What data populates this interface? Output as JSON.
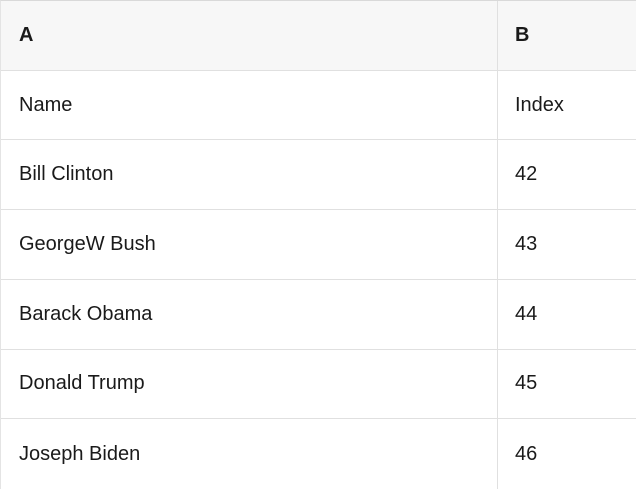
{
  "sheet": {
    "columns": [
      {
        "id": "A",
        "label": "A"
      },
      {
        "id": "B",
        "label": "B"
      }
    ],
    "rows": [
      {
        "a": "Name",
        "b": "Index"
      },
      {
        "a": "Bill Clinton",
        "b": "42"
      },
      {
        "a": "GeorgeW Bush",
        "b": "43"
      },
      {
        "a": "Barack Obama",
        "b": "44"
      },
      {
        "a": "Donald Trump",
        "b": "45"
      },
      {
        "a": "Joseph Biden",
        "b": "46"
      }
    ]
  },
  "colors": {
    "header_bg": "#f7f7f7",
    "body_bg": "#ffffff",
    "grid_border": "#e0e0e0",
    "top_border": "#d9d9d9",
    "text": "#1a1a1a"
  }
}
